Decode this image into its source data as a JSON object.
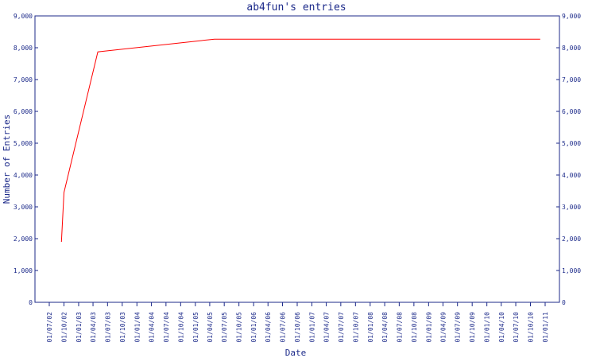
{
  "chart_data": {
    "type": "line",
    "title": "ab4fun's entries",
    "xlabel": "Date",
    "ylabel": "Number of Entries",
    "ylim": [
      0,
      9000
    ],
    "yticks": [
      "0",
      "1,000",
      "2,000",
      "3,000",
      "4,000",
      "5,000",
      "6,000",
      "7,000",
      "8,000",
      "9,000"
    ],
    "ytick_values": [
      0,
      1000,
      2000,
      3000,
      4000,
      5000,
      6000,
      7000,
      8000,
      9000
    ],
    "x_dates": [
      "2002-07-01",
      "2002-10-01",
      "2003-01-01",
      "2003-04-01",
      "2003-07-01",
      "2003-10-01",
      "2004-01-01",
      "2004-04-01",
      "2004-07-01",
      "2004-10-01",
      "2005-01-01",
      "2005-04-01",
      "2005-07-01",
      "2005-10-01",
      "2006-01-01",
      "2006-04-01",
      "2006-07-01",
      "2006-10-01",
      "2007-01-01",
      "2007-04-01",
      "2007-07-01",
      "2007-10-01",
      "2008-01-01",
      "2008-04-01",
      "2008-07-01",
      "2008-10-01",
      "2009-01-01",
      "2009-04-01",
      "2009-07-01",
      "2009-10-01",
      "2010-01-01",
      "2010-04-01",
      "2010-07-01",
      "2010-10-01",
      "2011-01-01"
    ],
    "xticks": [
      "01/07/02",
      "01/10/02",
      "01/01/03",
      "01/04/03",
      "01/07/03",
      "01/10/03",
      "01/01/04",
      "01/04/04",
      "01/07/04",
      "01/10/04",
      "01/01/05",
      "01/04/05",
      "01/07/05",
      "01/10/05",
      "01/01/06",
      "01/04/06",
      "01/07/06",
      "01/10/06",
      "01/01/07",
      "01/04/07",
      "01/07/07",
      "01/10/07",
      "01/01/08",
      "01/04/08",
      "01/07/08",
      "01/10/08",
      "01/01/09",
      "01/04/09",
      "01/07/09",
      "01/10/09",
      "01/01/10",
      "01/04/10",
      "01/07/10",
      "01/10/10",
      "01/01/11"
    ],
    "series": [
      {
        "color": "#ff0000",
        "points": [
          {
            "x": "2002-09-15",
            "y": 1900
          },
          {
            "x": "2002-10-01",
            "y": 3450
          },
          {
            "x": "2003-05-01",
            "y": 7870
          },
          {
            "x": "2005-05-01",
            "y": 8270
          },
          {
            "x": "2010-12-01",
            "y": 8270
          }
        ]
      }
    ],
    "grid": false,
    "legend": "none",
    "axis_color": "#1c2a8a"
  }
}
